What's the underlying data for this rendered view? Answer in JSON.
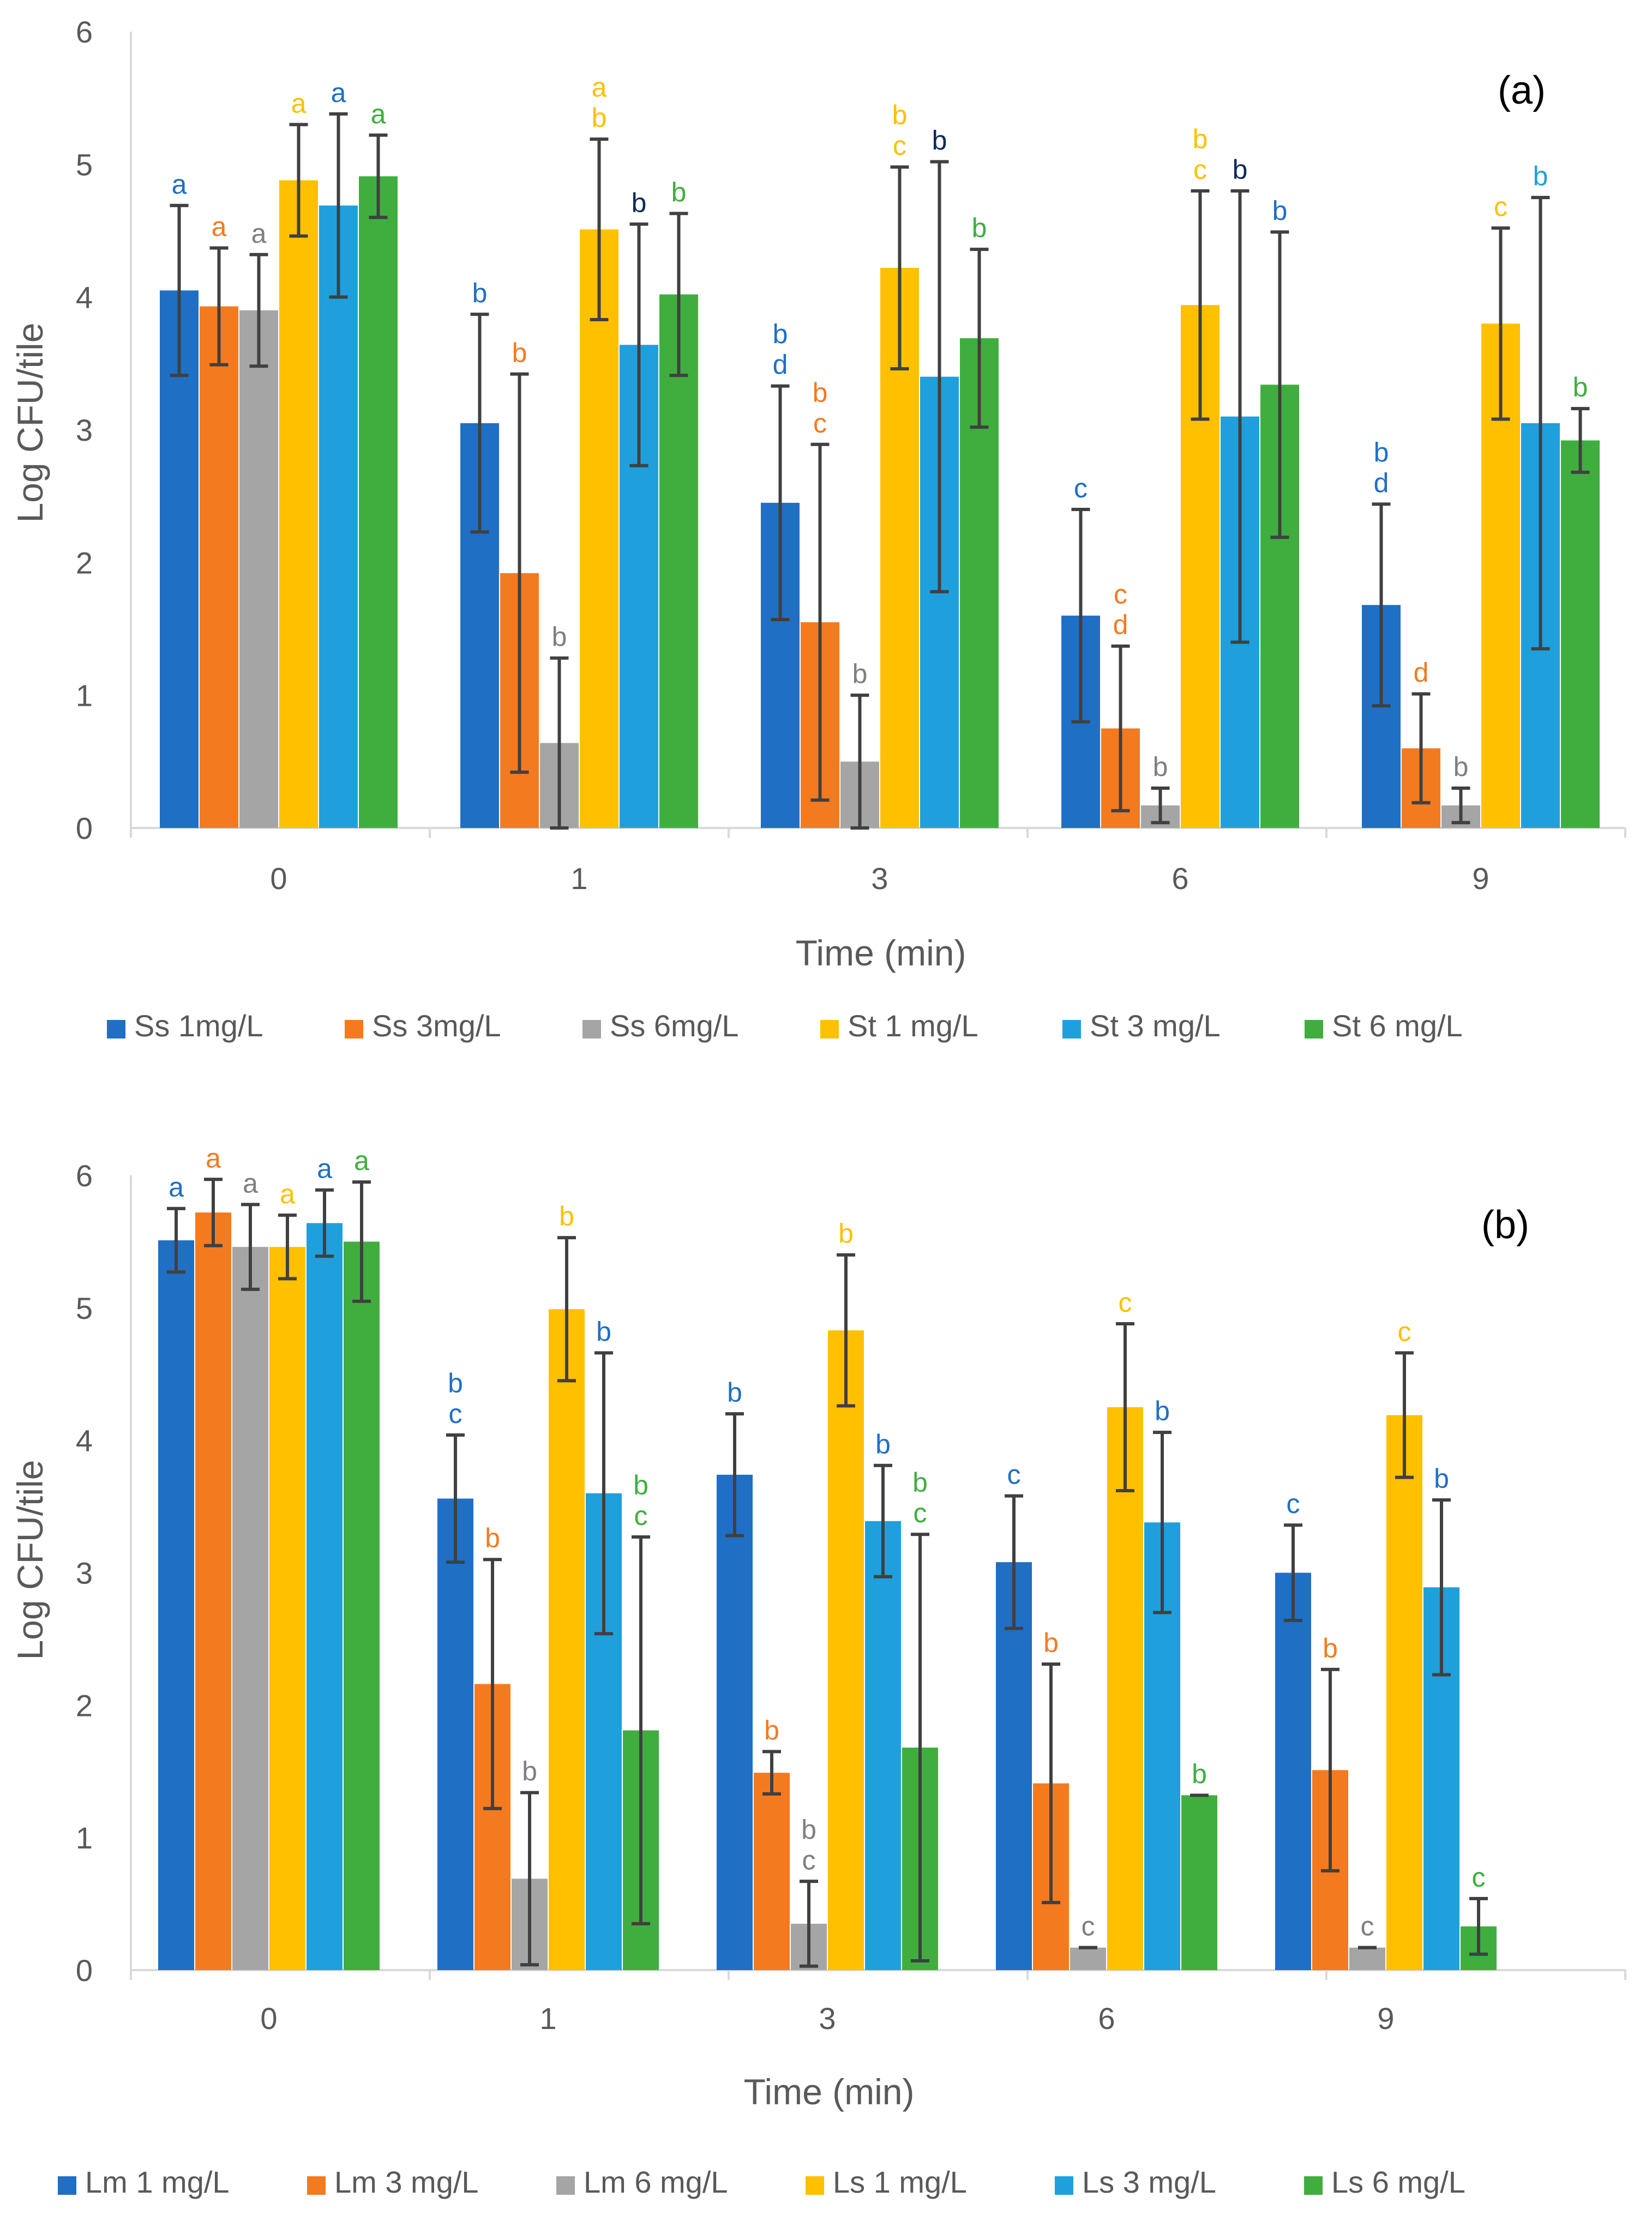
{
  "chart_data": [
    {
      "type": "bar",
      "panel_label": "(a)",
      "categories": [
        "0",
        "1",
        "3",
        "6",
        "9"
      ],
      "xlabel": "Time (min)",
      "ylabel": "Log CFU/tile",
      "ylim": [
        0,
        6
      ],
      "yticks": [
        "0",
        "1",
        "2",
        "3",
        "4",
        "5",
        "6"
      ],
      "grid": false,
      "legend_position": "bottom",
      "series": [
        {
          "name": "Ss 1mg/L",
          "color": "#1F6FC5",
          "values": [
            4.05,
            3.05,
            2.45,
            1.6,
            1.68
          ],
          "errors": [
            0.64,
            0.82,
            0.88,
            0.8,
            0.76
          ],
          "letters": [
            [
              "a"
            ],
            [
              "b"
            ],
            [
              "b",
              "d"
            ],
            [
              "c"
            ],
            [
              "b",
              "d"
            ]
          ],
          "letter_color": "#1F6FC5"
        },
        {
          "name": "Ss 3mg/L",
          "color": "#F47A20",
          "values": [
            3.93,
            1.92,
            1.55,
            0.75,
            0.6
          ],
          "errors": [
            0.44,
            1.5,
            1.34,
            0.62,
            0.41
          ],
          "letters": [
            [
              "a"
            ],
            [
              "b"
            ],
            [
              "b",
              "c"
            ],
            [
              "c",
              "d"
            ],
            [
              "d"
            ]
          ],
          "letter_color": "#F47A20"
        },
        {
          "name": "Ss 6mg/L",
          "color": "#A5A5A5",
          "values": [
            3.9,
            0.64,
            0.5,
            0.17,
            0.17
          ],
          "errors": [
            0.42,
            0.64,
            0.5,
            0.13,
            0.13
          ],
          "letters": [
            [
              "a"
            ],
            [
              "b"
            ],
            [
              "b"
            ],
            [
              "b"
            ],
            [
              "b"
            ]
          ],
          "letter_color": "#7F7F7F"
        },
        {
          "name": "St 1 mg/L",
          "color": "#FFC000",
          "values": [
            4.88,
            4.51,
            4.22,
            3.94,
            3.8
          ],
          "errors": [
            0.42,
            0.68,
            0.76,
            0.86,
            0.72
          ],
          "letters": [
            [
              "a"
            ],
            [
              "a",
              "b"
            ],
            [
              "b",
              "c"
            ],
            [
              "b",
              "c"
            ],
            [
              "c"
            ]
          ],
          "letter_color": "#FFC000"
        },
        {
          "name": "St 3 mg/L",
          "color": "#1FA0DC",
          "values": [
            4.69,
            3.64,
            3.4,
            3.1,
            3.05
          ],
          "errors": [
            0.69,
            0.91,
            1.62,
            1.7,
            1.7
          ],
          "letters": [
            [
              "a"
            ],
            [
              "b"
            ],
            [
              "b"
            ],
            [
              "b"
            ],
            [
              "b"
            ]
          ],
          "letter_color": "#1F6FC5",
          "letter_colors": [
            "#1F6FC5",
            "#0D2A5A",
            "#0D2A5A",
            "#0D2A5A",
            "#1FA0DC"
          ]
        },
        {
          "name": "St 6 mg/L",
          "color": "#3FAE3F",
          "values": [
            4.91,
            4.02,
            3.69,
            3.34,
            2.92
          ],
          "errors": [
            0.31,
            0.61,
            0.67,
            1.15,
            0.24
          ],
          "letters": [
            [
              "a"
            ],
            [
              "b"
            ],
            [
              "b"
            ],
            [
              "b"
            ],
            [
              "b"
            ]
          ],
          "letter_color": "#3FAE3F",
          "letter_colors": [
            "#3FAE3F",
            "#3FAE3F",
            "#3FAE3F",
            "#1F6FC5",
            "#3FAE3F"
          ]
        }
      ]
    },
    {
      "type": "bar",
      "panel_label": "(b)",
      "categories": [
        "0",
        "1",
        "3",
        "6",
        "9"
      ],
      "xlabel": "Time (min)",
      "ylabel": "Log CFU/tile",
      "ylim": [
        0,
        6
      ],
      "yticks": [
        "0",
        "1",
        "2",
        "3",
        "4",
        "5",
        "6"
      ],
      "grid": false,
      "legend_position": "bottom",
      "series": [
        {
          "name": "Lm 1 mg/L",
          "color": "#1F6FC5",
          "values": [
            5.51,
            3.56,
            3.74,
            3.08,
            3.0
          ],
          "errors": [
            0.24,
            0.48,
            0.46,
            0.5,
            0.36
          ],
          "letters": [
            [
              "a"
            ],
            [
              "b",
              "c"
            ],
            [
              "b"
            ],
            [
              "c"
            ],
            [
              "c"
            ]
          ],
          "letter_color": "#1F6FC5"
        },
        {
          "name": "Lm 3 mg/L",
          "color": "#F47A20",
          "values": [
            5.72,
            2.16,
            1.49,
            1.41,
            1.51
          ],
          "errors": [
            0.25,
            0.94,
            0.16,
            0.9,
            0.76
          ],
          "letters": [
            [
              "a"
            ],
            [
              "b"
            ],
            [
              "b"
            ],
            [
              "b"
            ],
            [
              "b"
            ]
          ],
          "letter_color": "#F47A20"
        },
        {
          "name": "Lm 6 mg/L",
          "color": "#A5A5A5",
          "values": [
            5.46,
            0.69,
            0.35,
            0.17,
            0.17
          ],
          "errors": [
            0.32,
            0.65,
            0.32,
            0.0,
            0.0
          ],
          "letters": [
            [
              "a"
            ],
            [
              "b"
            ],
            [
              "b",
              "c"
            ],
            [
              "c"
            ],
            [
              "c"
            ]
          ],
          "letter_color": "#7F7F7F"
        },
        {
          "name": "Ls 1 mg/L",
          "color": "#FFC000",
          "values": [
            5.46,
            4.99,
            4.83,
            4.25,
            4.19
          ],
          "errors": [
            0.24,
            0.54,
            0.57,
            0.63,
            0.47
          ],
          "letters": [
            [
              "a"
            ],
            [
              "b"
            ],
            [
              "b"
            ],
            [
              "c"
            ],
            [
              "c"
            ]
          ],
          "letter_color": "#FFC000"
        },
        {
          "name": "Ls 3 mg/L",
          "color": "#1FA0DC",
          "values": [
            5.64,
            3.6,
            3.39,
            3.38,
            2.89
          ],
          "errors": [
            0.25,
            1.06,
            0.42,
            0.68,
            0.66
          ],
          "letters": [
            [
              "a"
            ],
            [
              "b"
            ],
            [
              "b"
            ],
            [
              "b"
            ],
            [
              "b"
            ]
          ],
          "letter_color": "#1F6FC5"
        },
        {
          "name": "Ls 6 mg/L",
          "color": "#3FAE3F",
          "values": [
            5.5,
            1.81,
            1.68,
            1.32,
            0.33
          ],
          "errors": [
            0.45,
            1.46,
            1.61,
            0.0,
            0.21
          ],
          "letters": [
            [
              "a"
            ],
            [
              "b",
              "c"
            ],
            [
              "b",
              "c"
            ],
            [
              "b"
            ],
            [
              "c"
            ]
          ],
          "letter_color": "#3FAE3F"
        }
      ]
    }
  ]
}
